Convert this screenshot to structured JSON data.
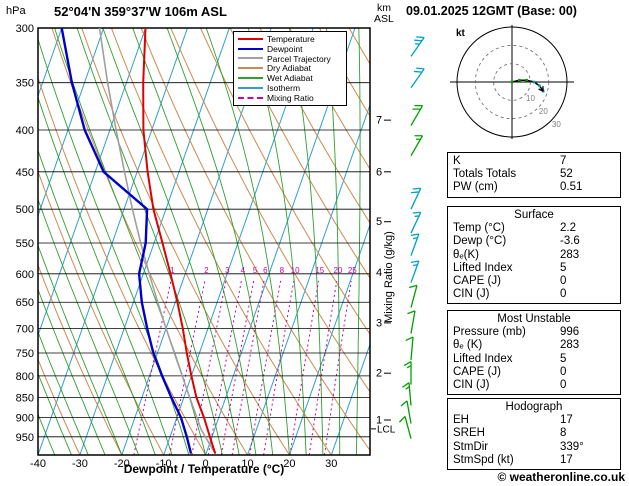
{
  "header": {
    "pressure_unit": "hPa",
    "station": "52°04'N 359°37'W 106m ASL",
    "datetime": "09.01.2025 12GMT (Base: 00)",
    "alt_unit_top": "km",
    "alt_unit_bottom": "ASL"
  },
  "axes": {
    "x_label": "Dewpoint / Temperature (°C)",
    "x_ticks": [
      -40,
      -30,
      -20,
      -10,
      0,
      10,
      20,
      30
    ],
    "pressure_ticks": [
      300,
      350,
      400,
      450,
      500,
      550,
      600,
      650,
      700,
      750,
      800,
      850,
      900,
      950
    ],
    "mixing_axis_label": "Mixing Ratio (g/kg)",
    "mixing_ratio_ticks": [
      1,
      2,
      3,
      4,
      5,
      6,
      8,
      10,
      15,
      20,
      25
    ],
    "height_ticks": [
      {
        "km": 7,
        "p": 389
      },
      {
        "km": 6,
        "p": 450
      },
      {
        "km": 5,
        "p": 518
      },
      {
        "km": 4,
        "p": 598
      },
      {
        "km": 3,
        "p": 689
      },
      {
        "km": 2,
        "p": 794
      },
      {
        "km": 1,
        "p": 906
      }
    ],
    "lcl_label": "LCL",
    "lcl_pressure": 929
  },
  "legend": [
    {
      "label": "Temperature",
      "color": "#e00000",
      "dashed": false
    },
    {
      "label": "Dewpoint",
      "color": "#0000cc",
      "dashed": false
    },
    {
      "label": "Parcel Trajectory",
      "color": "#a0a0a0",
      "dashed": false
    },
    {
      "label": "Dry Adiabat",
      "color": "#cc8a50",
      "dashed": false
    },
    {
      "label": "Wet Adiabat",
      "color": "#2fa02f",
      "dashed": false
    },
    {
      "label": "Isotherm",
      "color": "#30a0c8",
      "dashed": false
    },
    {
      "label": "Mixing Ratio",
      "color": "#cc00aa",
      "dashed": true
    }
  ],
  "colors": {
    "temperature": "#e00000",
    "dewpoint": "#0000cc",
    "parcel": "#a0a0a0",
    "dry_adiabat": "#cc8a50",
    "wet_adiabat": "#2fa02f",
    "isotherm": "#30a0c8",
    "mixing_ratio": "#cc00aa",
    "wind_green": "#00a000",
    "wind_cyan": "#00a0c8",
    "grid": "#000000"
  },
  "chart_data": {
    "type": "line",
    "title": "Skew-T log-P sounding",
    "xlabel": "Dewpoint / Temperature (°C)",
    "ylabel": "Pressure (hPa), log scale",
    "x_range": [
      -40,
      40
    ],
    "pressure_range_hPa": [
      300,
      1000
    ],
    "series": [
      {
        "name": "Temperature",
        "color": "#e00000",
        "pressure_hPa": [
          996,
          950,
          900,
          850,
          800,
          750,
          700,
          650,
          600,
          550,
          500,
          450,
          400,
          350,
          300
        ],
        "temp_C": [
          2.2,
          -0.5,
          -3.5,
          -7.0,
          -10.0,
          -13.0,
          -16.0,
          -19.5,
          -23.5,
          -28.0,
          -33.0,
          -37.5,
          -42.0,
          -46.0,
          -50.0
        ]
      },
      {
        "name": "Dewpoint",
        "color": "#0000cc",
        "pressure_hPa": [
          996,
          950,
          900,
          850,
          800,
          750,
          700,
          650,
          600,
          550,
          500,
          450,
          400,
          350,
          300
        ],
        "temp_C": [
          -3.6,
          -6.0,
          -9.0,
          -13.0,
          -17.0,
          -21.0,
          -24.5,
          -28.0,
          -31.0,
          -32.0,
          -34.5,
          -48.0,
          -56.0,
          -63.0,
          -70.0
        ]
      },
      {
        "name": "Parcel Trajectory",
        "color": "#a0a0a0",
        "pressure_hPa": [
          996,
          950,
          929,
          900,
          850,
          800,
          750,
          700,
          650,
          600,
          550,
          500,
          450,
          400,
          350,
          300
        ],
        "temp_C": [
          2.2,
          -1.6,
          -3.3,
          -5.2,
          -8.6,
          -12.2,
          -16.0,
          -20.0,
          -24.2,
          -28.6,
          -33.2,
          -38.0,
          -43.0,
          -48.5,
          -54.5,
          -61.0
        ]
      }
    ],
    "winds": [
      {
        "p": 325,
        "dir": 35,
        "spd": 25,
        "c": "cyan"
      },
      {
        "p": 355,
        "dir": 35,
        "spd": 20,
        "c": "cyan"
      },
      {
        "p": 395,
        "dir": 30,
        "spd": 20,
        "c": "green"
      },
      {
        "p": 430,
        "dir": 30,
        "spd": 15,
        "c": "green"
      },
      {
        "p": 500,
        "dir": 25,
        "spd": 20,
        "c": "cyan"
      },
      {
        "p": 535,
        "dir": 25,
        "spd": 15,
        "c": "cyan"
      },
      {
        "p": 570,
        "dir": 20,
        "spd": 15,
        "c": "cyan"
      },
      {
        "p": 615,
        "dir": 20,
        "spd": 15,
        "c": "cyan"
      },
      {
        "p": 660,
        "dir": 15,
        "spd": 10,
        "c": "green"
      },
      {
        "p": 710,
        "dir": 10,
        "spd": 10,
        "c": "green"
      },
      {
        "p": 765,
        "dir": 5,
        "spd": 10,
        "c": "green"
      },
      {
        "p": 820,
        "dir": 0,
        "spd": 15,
        "c": "green"
      },
      {
        "p": 870,
        "dir": 355,
        "spd": 15,
        "c": "green"
      },
      {
        "p": 915,
        "dir": 350,
        "spd": 10,
        "c": "green"
      },
      {
        "p": 955,
        "dir": 345,
        "spd": 10,
        "c": "green"
      }
    ],
    "background": {
      "isotherm_step_C": 10,
      "dry_adiabat_step_C": 10,
      "wet_adiabat_step_C": 4,
      "mixing_ratio_lines_g_kg": [
        1,
        2,
        3,
        4,
        5,
        6,
        8,
        10,
        15,
        20,
        25
      ]
    }
  },
  "hodograph": {
    "unit_label": "kt",
    "ring_step_kt": 10,
    "ring_labels": [
      "10",
      "20",
      "30"
    ],
    "trace_kt": [
      {
        "u": 0,
        "v": 0
      },
      {
        "u": 4,
        "v": 1
      },
      {
        "u": 8,
        "v": 1
      },
      {
        "u": 12,
        "v": 0
      },
      {
        "u": 15,
        "v": -2
      },
      {
        "u": 17,
        "v": -5
      }
    ],
    "point_colors": [
      "#00a000",
      "#00a000",
      "#00a000",
      "#00a0c8",
      "#00a0c8",
      "#00a0c8"
    ]
  },
  "panels": [
    {
      "title": null,
      "rows": [
        {
          "label": "K",
          "value": "7"
        },
        {
          "label": "Totals Totals",
          "value": "52"
        },
        {
          "label": "PW (cm)",
          "value": "0.51"
        }
      ]
    },
    {
      "title": "Surface",
      "rows": [
        {
          "label": "Temp (°C)",
          "value": "2.2"
        },
        {
          "label": "Dewp (°C)",
          "value": "-3.6"
        },
        {
          "label": "θₑ(K)",
          "value": "283"
        },
        {
          "label": "Lifted Index",
          "value": "5"
        },
        {
          "label": "CAPE (J)",
          "value": "0"
        },
        {
          "label": "CIN (J)",
          "value": "0"
        }
      ]
    },
    {
      "title": "Most Unstable",
      "rows": [
        {
          "label": "Pressure (mb)",
          "value": "996"
        },
        {
          "label": "θₑ (K)",
          "value": "283"
        },
        {
          "label": "Lifted Index",
          "value": "5"
        },
        {
          "label": "CAPE (J)",
          "value": "0"
        },
        {
          "label": "CIN (J)",
          "value": "0"
        }
      ]
    },
    {
      "title": "Hodograph",
      "rows": [
        {
          "label": "EH",
          "value": "17"
        },
        {
          "label": "SREH",
          "value": "8"
        },
        {
          "label": "StmDir",
          "value": "339°"
        },
        {
          "label": "StmSpd (kt)",
          "value": "17"
        }
      ]
    }
  ],
  "footer": {
    "copyright": "© weatheronline.co.uk"
  }
}
